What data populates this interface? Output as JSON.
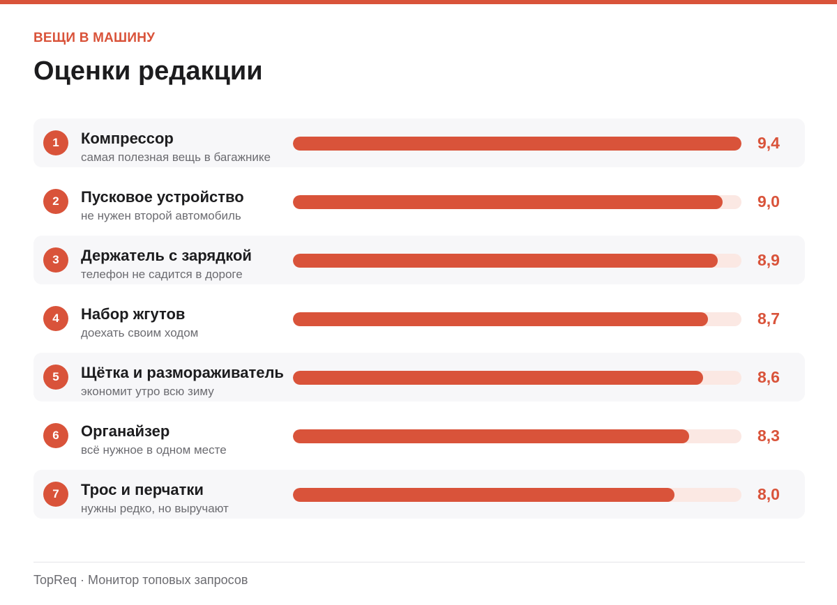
{
  "header": {
    "kicker": "ВЕЩИ В МАШИНУ",
    "title": "Оценки редакции"
  },
  "colors": {
    "accent": "#d9533a",
    "track": "#fbe8e3",
    "row_shade": "#f7f7f9"
  },
  "chart_data": {
    "type": "bar",
    "orientation": "horizontal",
    "title": "Оценки редакции",
    "xlim": [
      0,
      9.4
    ],
    "categories": [
      "Компрессор",
      "Пусковое устройство",
      "Держатель с зарядкой",
      "Набор жгутов",
      "Щётка и размораживатель",
      "Органайзер",
      "Трос и перчатки"
    ],
    "rows": [
      {
        "rank": "1",
        "name": "Компрессор",
        "note": "самая полезная вещь в багажнике",
        "value": 9.4,
        "value_label": "9,4"
      },
      {
        "rank": "2",
        "name": "Пусковое устройство",
        "note": "не нужен второй автомобиль",
        "value": 9.0,
        "value_label": "9,0"
      },
      {
        "rank": "3",
        "name": "Держатель с зарядкой",
        "note": "телефон не садится в дороге",
        "value": 8.9,
        "value_label": "8,9"
      },
      {
        "rank": "4",
        "name": "Набор жгутов",
        "note": "доехать своим ходом",
        "value": 8.7,
        "value_label": "8,7"
      },
      {
        "rank": "5",
        "name": "Щётка и размораживатель",
        "note": "экономит утро всю зиму",
        "value": 8.6,
        "value_label": "8,6"
      },
      {
        "rank": "6",
        "name": "Органайзер",
        "note": "всё нужное в одном месте",
        "value": 8.3,
        "value_label": "8,3"
      },
      {
        "rank": "7",
        "name": "Трос и перчатки",
        "note": "нужны редко, но выручают",
        "value": 8.0,
        "value_label": "8,0"
      }
    ]
  },
  "footer": {
    "text": "TopReq · Монитор топовых запросов"
  }
}
